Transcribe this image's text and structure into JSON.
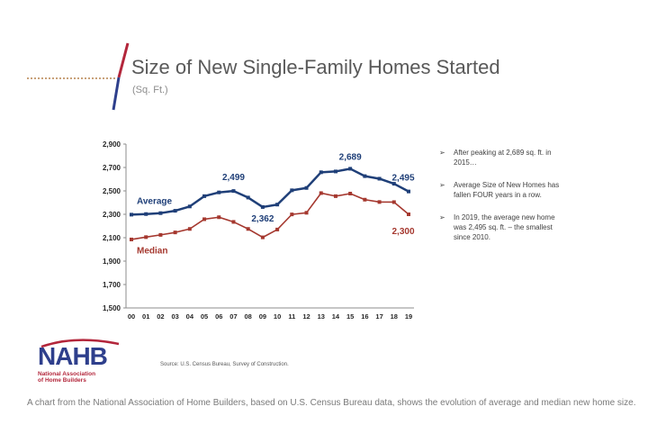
{
  "header": {
    "title": "Size of New Single-Family Homes Started",
    "subtitle": "(Sq. Ft.)"
  },
  "colors": {
    "average": "#1f3f78",
    "median": "#a5382f",
    "title": "#595959",
    "accent_red": "#b3263b",
    "accent_navy": "#2e3f8c"
  },
  "chart_data": {
    "type": "line",
    "categories": [
      "00",
      "01",
      "02",
      "03",
      "04",
      "05",
      "06",
      "07",
      "08",
      "09",
      "10",
      "11",
      "12",
      "13",
      "14",
      "15",
      "16",
      "17",
      "18",
      "19"
    ],
    "series": [
      {
        "name": "Average",
        "values": [
          2297,
          2302,
          2310,
          2330,
          2367,
          2455,
          2487,
          2499,
          2443,
          2362,
          2383,
          2505,
          2525,
          2659,
          2666,
          2689,
          2626,
          2604,
          2561,
          2495
        ]
      },
      {
        "name": "Median",
        "values": [
          2085,
          2105,
          2124,
          2145,
          2175,
          2258,
          2275,
          2235,
          2175,
          2103,
          2170,
          2299,
          2313,
          2481,
          2455,
          2477,
          2425,
          2405,
          2404,
          2300
        ]
      }
    ],
    "yticks": [
      "2,900",
      "2,700",
      "2,500",
      "2,300",
      "2,100",
      "1,900",
      "1,700",
      "1,500"
    ],
    "ylim": [
      1500,
      2900
    ],
    "annotations": [
      {
        "text": "2,499",
        "series": 0,
        "index": 7
      },
      {
        "text": "2,362",
        "series": 0,
        "index": 9
      },
      {
        "text": "2,689",
        "series": 0,
        "index": 15
      },
      {
        "text": "2,495",
        "series": 0,
        "index": 19
      },
      {
        "text": "2,300",
        "series": 1,
        "index": 19
      }
    ],
    "grid": false
  },
  "bullets": [
    {
      "icon": "arrow-bullet-icon",
      "text": "After peaking at 2,689 sq. ft. in 2015…"
    },
    {
      "icon": "arrow-bullet-icon",
      "text": "Average Size of New Homes has fallen FOUR years in a row."
    },
    {
      "icon": "arrow-bullet-icon",
      "text": "In 2019, the average new home was 2,495 sq. ft. – the smallest since 2010."
    }
  ],
  "logo": {
    "name": "NAHB",
    "line1": "National Association",
    "line2": "of Home Builders"
  },
  "source": "Source: U.S. Census Bureau, Survey of Construction.",
  "caption": "A chart from the National Association of Home Builders, based on U.S. Census Bureau data, shows the evolution of average and median new home size."
}
